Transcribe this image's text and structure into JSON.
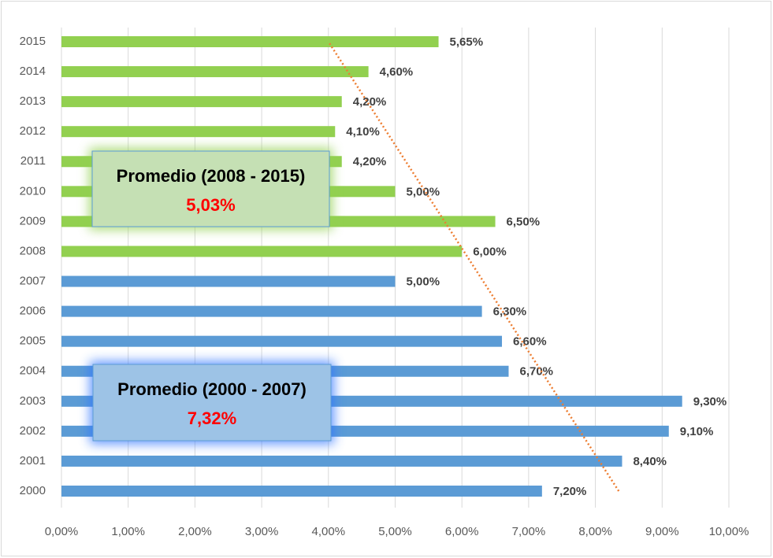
{
  "chart_data": {
    "type": "bar",
    "orientation": "horizontal",
    "categories": [
      "2000",
      "2001",
      "2002",
      "2003",
      "2004",
      "2005",
      "2006",
      "2007",
      "2008",
      "2009",
      "2010",
      "2011",
      "2012",
      "2013",
      "2014",
      "2015"
    ],
    "values": [
      7.2,
      8.4,
      9.1,
      9.3,
      6.7,
      6.6,
      6.3,
      5.0,
      6.0,
      6.5,
      5.0,
      4.2,
      4.1,
      4.2,
      4.6,
      5.65
    ],
    "value_labels": [
      "7,20%",
      "8,40%",
      "9,10%",
      "9,30%",
      "6,70%",
      "6,60%",
      "6,30%",
      "5,00%",
      "6,00%",
      "6,50%",
      "5,00%",
      "4,20%",
      "4,10%",
      "4,20%",
      "4,60%",
      "5,65%"
    ],
    "colors": [
      "#5b9bd5",
      "#5b9bd5",
      "#5b9bd5",
      "#5b9bd5",
      "#5b9bd5",
      "#5b9bd5",
      "#5b9bd5",
      "#5b9bd5",
      "#92d050",
      "#92d050",
      "#92d050",
      "#92d050",
      "#92d050",
      "#92d050",
      "#92d050",
      "#92d050"
    ],
    "xlim": [
      0,
      10
    ],
    "xticks": [
      {
        "value": 0,
        "label": "0,00%"
      },
      {
        "value": 1,
        "label": "1,00%"
      },
      {
        "value": 2,
        "label": "2,00%"
      },
      {
        "value": 3,
        "label": "3,00%"
      },
      {
        "value": 4,
        "label": "4,00%"
      },
      {
        "value": 5,
        "label": "5,00%"
      },
      {
        "value": 6,
        "label": "6,00%"
      },
      {
        "value": 7,
        "label": "7,00%"
      },
      {
        "value": 8,
        "label": "8,00%"
      },
      {
        "value": 9,
        "label": "9,00%"
      },
      {
        "value": 10,
        "label": "10,00%"
      }
    ],
    "grid": true,
    "trendline": {
      "color": "#ed7d31",
      "values": [
        8.35,
        4.0
      ]
    },
    "annotations": [
      {
        "title": "Promedio (2008 - 2015)",
        "value": "5,03%",
        "fill": "#c5e0b4",
        "glow": "#92d050"
      },
      {
        "title": "Promedio (2000 - 2007)",
        "value": "7,32%",
        "fill": "#9dc3e6",
        "glow": "#2e75ff"
      }
    ]
  }
}
